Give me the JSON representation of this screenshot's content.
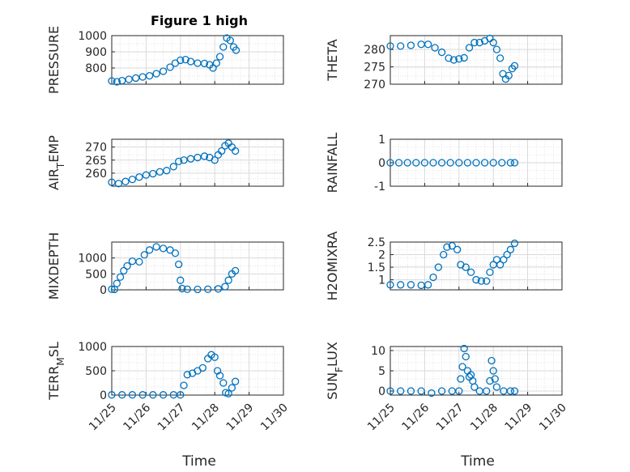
{
  "figure": {
    "title": "Figure 1 high",
    "xlabel_left": "Time",
    "xlabel_right": "Time",
    "x_ticks": [
      "11/25",
      "11/26",
      "11/27",
      "11/28",
      "11/29",
      "11/30"
    ],
    "marker_color": "#0072BD",
    "grid_color": "#d9d9d9"
  },
  "chart_data": [
    {
      "type": "scatter",
      "title": "Figure 1 high",
      "ylabel": "PRESSURE",
      "ylim": [
        700,
        1000
      ],
      "yticks": [
        800,
        900,
        1000
      ],
      "xlim": [
        0,
        5
      ],
      "grid": "on",
      "marker": "open-circle",
      "points": [
        [
          0,
          720
        ],
        [
          0.15,
          715
        ],
        [
          0.3,
          722
        ],
        [
          0.5,
          730
        ],
        [
          0.7,
          738
        ],
        [
          0.9,
          745
        ],
        [
          1.1,
          752
        ],
        [
          1.3,
          765
        ],
        [
          1.5,
          780
        ],
        [
          1.7,
          805
        ],
        [
          1.85,
          830
        ],
        [
          2.0,
          848
        ],
        [
          2.15,
          852
        ],
        [
          2.3,
          840
        ],
        [
          2.5,
          830
        ],
        [
          2.7,
          828
        ],
        [
          2.85,
          820
        ],
        [
          2.95,
          800
        ],
        [
          3.05,
          830
        ],
        [
          3.15,
          870
        ],
        [
          3.25,
          930
        ],
        [
          3.35,
          985
        ],
        [
          3.45,
          970
        ],
        [
          3.55,
          930
        ],
        [
          3.62,
          910
        ]
      ]
    },
    {
      "type": "scatter",
      "ylabel": "THETA",
      "ylim": [
        270,
        284
      ],
      "yticks": [
        270,
        275,
        280
      ],
      "xlim": [
        0,
        5
      ],
      "grid": "on",
      "marker": "open-circle",
      "points": [
        [
          0,
          281
        ],
        [
          0.3,
          281
        ],
        [
          0.6,
          281.2
        ],
        [
          0.9,
          281.5
        ],
        [
          1.1,
          281.5
        ],
        [
          1.3,
          280.5
        ],
        [
          1.5,
          279.2
        ],
        [
          1.7,
          277.5
        ],
        [
          1.85,
          277
        ],
        [
          2.0,
          277.3
        ],
        [
          2.15,
          277.6
        ],
        [
          2.3,
          280.5
        ],
        [
          2.45,
          282
        ],
        [
          2.6,
          282
        ],
        [
          2.75,
          282.5
        ],
        [
          2.9,
          283.2
        ],
        [
          3.0,
          282
        ],
        [
          3.1,
          280
        ],
        [
          3.2,
          277.5
        ],
        [
          3.28,
          273
        ],
        [
          3.36,
          271.5
        ],
        [
          3.45,
          272.5
        ],
        [
          3.55,
          274.5
        ],
        [
          3.62,
          275.3
        ]
      ]
    },
    {
      "type": "scatter",
      "ylabel": "AIR_TEMP",
      "ylim": [
        255,
        273
      ],
      "yticks": [
        260,
        265,
        270
      ],
      "xlim": [
        0,
        5
      ],
      "grid": "on",
      "marker": "open-circle",
      "points": [
        [
          0,
          256.5
        ],
        [
          0.2,
          256
        ],
        [
          0.4,
          256.8
        ],
        [
          0.6,
          257.6
        ],
        [
          0.8,
          258.5
        ],
        [
          1.0,
          259.3
        ],
        [
          1.2,
          259.8
        ],
        [
          1.4,
          260.5
        ],
        [
          1.6,
          261
        ],
        [
          1.8,
          262.5
        ],
        [
          1.95,
          264.5
        ],
        [
          2.1,
          265
        ],
        [
          2.3,
          265.5
        ],
        [
          2.5,
          266
        ],
        [
          2.7,
          266.5
        ],
        [
          2.85,
          266
        ],
        [
          3.0,
          265
        ],
        [
          3.1,
          267
        ],
        [
          3.2,
          268.5
        ],
        [
          3.3,
          270.5
        ],
        [
          3.4,
          271.5
        ],
        [
          3.5,
          270
        ],
        [
          3.6,
          268.5
        ]
      ]
    },
    {
      "type": "scatter",
      "ylabel": "RAINFALL",
      "ylim": [
        -1,
        1
      ],
      "yticks": [
        -1,
        0,
        1
      ],
      "xlim": [
        0,
        5
      ],
      "grid": "on",
      "marker": "open-circle",
      "points": [
        [
          0,
          0
        ],
        [
          0.25,
          0
        ],
        [
          0.5,
          0
        ],
        [
          0.75,
          0
        ],
        [
          1.0,
          0
        ],
        [
          1.25,
          0
        ],
        [
          1.5,
          0
        ],
        [
          1.75,
          0
        ],
        [
          2.0,
          0
        ],
        [
          2.25,
          0
        ],
        [
          2.5,
          0
        ],
        [
          2.75,
          0
        ],
        [
          3.0,
          0
        ],
        [
          3.25,
          0
        ],
        [
          3.5,
          0
        ],
        [
          3.62,
          0
        ]
      ]
    },
    {
      "type": "scatter",
      "ylabel": "MIXDEPTH",
      "ylim": [
        0,
        1500
      ],
      "yticks": [
        0,
        500,
        1000
      ],
      "xlim": [
        0,
        5
      ],
      "grid": "on",
      "marker": "open-circle",
      "points": [
        [
          0,
          20
        ],
        [
          0.08,
          15
        ],
        [
          0.15,
          200
        ],
        [
          0.25,
          400
        ],
        [
          0.35,
          600
        ],
        [
          0.45,
          750
        ],
        [
          0.6,
          900
        ],
        [
          0.8,
          880
        ],
        [
          0.95,
          1100
        ],
        [
          1.1,
          1250
        ],
        [
          1.3,
          1350
        ],
        [
          1.5,
          1300
        ],
        [
          1.7,
          1250
        ],
        [
          1.85,
          1150
        ],
        [
          1.95,
          800
        ],
        [
          2.0,
          300
        ],
        [
          2.05,
          40
        ],
        [
          2.2,
          20
        ],
        [
          2.5,
          15
        ],
        [
          2.8,
          20
        ],
        [
          3.1,
          30
        ],
        [
          3.3,
          100
        ],
        [
          3.4,
          300
        ],
        [
          3.5,
          500
        ],
        [
          3.6,
          600
        ]
      ]
    },
    {
      "type": "scatter",
      "ylabel": "H2OMIXRA",
      "ylim": [
        0.6,
        2.5
      ],
      "yticks": [
        1,
        1.5,
        2,
        2.5
      ],
      "xlim": [
        0,
        5
      ],
      "grid": "on",
      "marker": "open-circle",
      "points": [
        [
          0,
          0.8
        ],
        [
          0.3,
          0.8
        ],
        [
          0.6,
          0.8
        ],
        [
          0.9,
          0.78
        ],
        [
          1.1,
          0.8
        ],
        [
          1.25,
          1.1
        ],
        [
          1.4,
          1.5
        ],
        [
          1.55,
          2.0
        ],
        [
          1.65,
          2.3
        ],
        [
          1.8,
          2.35
        ],
        [
          1.95,
          2.2
        ],
        [
          2.05,
          1.6
        ],
        [
          2.2,
          1.5
        ],
        [
          2.35,
          1.3
        ],
        [
          2.5,
          1.0
        ],
        [
          2.65,
          0.95
        ],
        [
          2.8,
          0.95
        ],
        [
          2.9,
          1.3
        ],
        [
          3.0,
          1.6
        ],
        [
          3.1,
          1.8
        ],
        [
          3.2,
          1.6
        ],
        [
          3.3,
          1.8
        ],
        [
          3.4,
          2.0
        ],
        [
          3.5,
          2.2
        ],
        [
          3.62,
          2.45
        ]
      ]
    },
    {
      "type": "scatter",
      "ylabel": "TERR_MSL",
      "ylim": [
        0,
        1000
      ],
      "yticks": [
        0,
        500,
        1000
      ],
      "xlim": [
        0,
        5
      ],
      "grid": "on",
      "marker": "open-circle",
      "points": [
        [
          0,
          5
        ],
        [
          0.3,
          5
        ],
        [
          0.6,
          5
        ],
        [
          0.9,
          5
        ],
        [
          1.2,
          5
        ],
        [
          1.5,
          5
        ],
        [
          1.8,
          5
        ],
        [
          2.0,
          5
        ],
        [
          2.1,
          200
        ],
        [
          2.2,
          420
        ],
        [
          2.35,
          450
        ],
        [
          2.5,
          500
        ],
        [
          2.65,
          560
        ],
        [
          2.8,
          750
        ],
        [
          2.9,
          830
        ],
        [
          3.0,
          780
        ],
        [
          3.08,
          500
        ],
        [
          3.15,
          400
        ],
        [
          3.25,
          250
        ],
        [
          3.32,
          50
        ],
        [
          3.4,
          30
        ],
        [
          3.5,
          150
        ],
        [
          3.6,
          280
        ]
      ]
    },
    {
      "type": "scatter",
      "ylabel": "SUN_FLUX",
      "ylim": [
        -1,
        11
      ],
      "yticks": [
        0,
        5,
        10
      ],
      "xlim": [
        0,
        5
      ],
      "grid": "on",
      "marker": "open-circle",
      "points": [
        [
          0,
          0
        ],
        [
          0.3,
          0
        ],
        [
          0.6,
          0
        ],
        [
          0.9,
          0
        ],
        [
          1.2,
          -0.5
        ],
        [
          1.5,
          0
        ],
        [
          1.8,
          0
        ],
        [
          2.0,
          0
        ],
        [
          2.05,
          3
        ],
        [
          2.1,
          6
        ],
        [
          2.15,
          10.5
        ],
        [
          2.2,
          8.5
        ],
        [
          2.25,
          5
        ],
        [
          2.3,
          3.5
        ],
        [
          2.35,
          4
        ],
        [
          2.4,
          2.5
        ],
        [
          2.45,
          1
        ],
        [
          2.6,
          0
        ],
        [
          2.8,
          0
        ],
        [
          2.9,
          2.5
        ],
        [
          2.95,
          7.5
        ],
        [
          3.0,
          5
        ],
        [
          3.05,
          3
        ],
        [
          3.1,
          1
        ],
        [
          3.3,
          0
        ],
        [
          3.5,
          0
        ],
        [
          3.62,
          0
        ]
      ]
    }
  ]
}
